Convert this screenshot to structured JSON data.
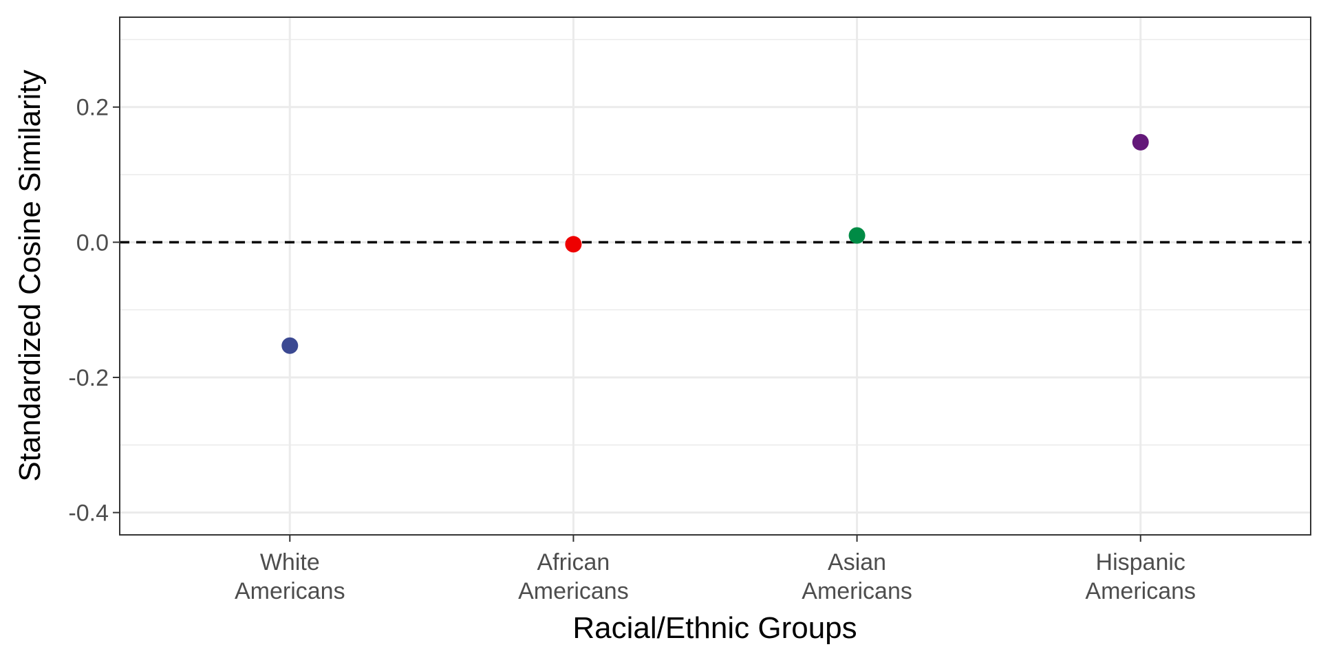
{
  "chart_data": {
    "type": "scatter",
    "title": "",
    "xlabel": "Racial/Ethnic Groups",
    "ylabel": "Standardized Cosine Similarity",
    "categories": [
      [
        "White",
        "Americans"
      ],
      [
        "African",
        "Americans"
      ],
      [
        "Asian",
        "Americans"
      ],
      [
        "Hispanic",
        "Americans"
      ]
    ],
    "values": [
      -0.153,
      -0.003,
      0.01,
      0.148
    ],
    "point_colors": [
      "#3B4992",
      "#EE0000",
      "#008B45",
      "#631879"
    ],
    "ylim": [
      -0.433,
      0.333
    ],
    "yticks": [
      -0.4,
      -0.2,
      0.0,
      0.2
    ],
    "ytick_labels": [
      "-0.4",
      "-0.2",
      "0.0",
      "0.2"
    ],
    "reference_line": {
      "y": 0.0,
      "style": "dashed",
      "color": "#000000"
    },
    "grid": true,
    "legend": "none"
  }
}
